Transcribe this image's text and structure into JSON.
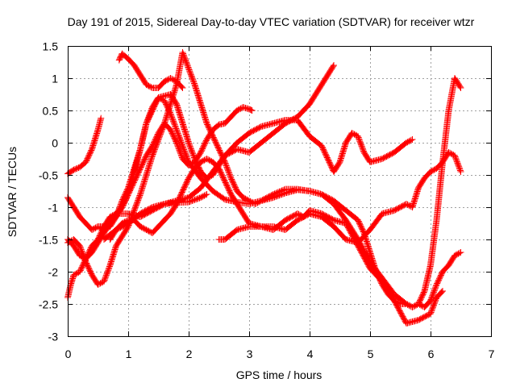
{
  "chart_data": {
    "type": "scatter",
    "title": "Day 191 of 2015, Sidereal Day-to-day VTEC variation (SDTVAR) for receiver wtzr",
    "xlabel": "GPS time / hours",
    "ylabel": "SDTVAR / TECUs",
    "xlim": [
      0,
      7
    ],
    "ylim": [
      -3,
      1.5
    ],
    "xticks": [
      "0",
      "1",
      "2",
      "3",
      "4",
      "5",
      "6",
      "7"
    ],
    "yticks": [
      "-3",
      "-2.5",
      "-2",
      "-1.5",
      "-1",
      "-0.5",
      "0",
      "0.5",
      "1",
      "1.5"
    ],
    "grid": true,
    "marker": "+",
    "color": "#ff0000",
    "series": [
      {
        "x": [
          0.0,
          0.1,
          0.2,
          0.3,
          0.4,
          0.5,
          0.55
        ],
        "y": [
          -0.48,
          -0.42,
          -0.38,
          -0.3,
          -0.1,
          0.2,
          0.38
        ]
      },
      {
        "x": [
          0.85,
          0.9,
          1.0,
          1.1,
          1.2,
          1.3,
          1.4,
          1.5,
          1.6,
          1.7,
          1.8,
          1.9
        ],
        "y": [
          1.28,
          1.38,
          1.3,
          1.2,
          1.05,
          0.9,
          0.85,
          0.85,
          0.95,
          1.0,
          0.95,
          0.85
        ]
      },
      {
        "x": [
          0.0,
          0.1,
          0.2,
          0.3,
          0.4,
          0.5,
          0.6,
          0.7,
          0.8,
          0.9,
          1.0,
          1.1,
          1.2,
          1.3,
          1.5,
          1.7,
          1.8,
          1.9,
          2.0,
          2.1,
          2.2,
          2.3,
          2.4,
          2.5,
          2.6,
          2.8,
          3.0,
          3.2,
          3.4,
          3.6,
          3.8,
          4.0,
          4.2,
          4.4
        ],
        "y": [
          -0.85,
          -1.0,
          -1.15,
          -1.25,
          -1.35,
          -1.3,
          -1.35,
          -1.3,
          -1.15,
          -0.9,
          -0.7,
          -0.4,
          -0.1,
          0.3,
          0.7,
          0.75,
          0.6,
          0.3,
          0.0,
          -0.25,
          -0.45,
          -0.55,
          -0.5,
          -0.35,
          -0.2,
          -0.1,
          -0.15,
          0.0,
          0.15,
          0.3,
          0.4,
          0.6,
          0.9,
          1.2
        ]
      },
      {
        "x": [
          0.0,
          0.1,
          0.2,
          0.3,
          0.4,
          0.5,
          0.6,
          0.7,
          0.8,
          1.0,
          1.2,
          1.4,
          1.6,
          1.8,
          1.9,
          2.0,
          2.1,
          2.2,
          2.3,
          2.4,
          2.5,
          2.6,
          2.7,
          2.8,
          2.9,
          3.0,
          3.1,
          3.2,
          3.4,
          3.6,
          3.8,
          4.0,
          4.2,
          4.4,
          4.6,
          4.8,
          4.9,
          5.0,
          5.1,
          5.2,
          5.3,
          5.4,
          5.5,
          5.6,
          5.7,
          5.8,
          5.9,
          6.0,
          6.1,
          6.2,
          6.3,
          6.4,
          6.5
        ],
        "y": [
          -1.55,
          -1.5,
          -1.6,
          -1.85,
          -2.05,
          -2.2,
          -2.15,
          -1.9,
          -1.6,
          -1.3,
          -0.8,
          -0.2,
          0.3,
          0.9,
          1.4,
          1.15,
          0.9,
          0.6,
          0.3,
          0.1,
          -0.1,
          -0.3,
          -0.55,
          -0.75,
          -0.85,
          -0.9,
          -0.95,
          -0.9,
          -0.8,
          -0.72,
          -0.72,
          -0.75,
          -0.8,
          -0.9,
          -1.05,
          -1.2,
          -1.4,
          -1.7,
          -2.0,
          -2.2,
          -2.35,
          -2.45,
          -2.5,
          -2.5,
          -2.55,
          -2.5,
          -2.55,
          -2.45,
          -2.2,
          -2.0,
          -1.9,
          -1.75,
          -1.7
        ]
      },
      {
        "x": [
          0.0,
          0.05,
          0.1,
          0.2,
          0.3,
          0.4,
          0.5,
          0.6,
          0.7,
          0.8,
          0.9,
          1.0,
          1.1,
          1.2,
          1.3,
          1.4,
          1.5,
          1.6,
          1.7,
          1.8,
          1.9,
          2.0,
          2.2,
          2.4,
          2.6,
          2.8,
          3.0,
          3.2,
          3.4,
          3.6,
          3.8,
          4.0,
          4.2,
          4.4,
          4.6,
          4.8,
          5.0,
          5.2,
          5.4,
          5.6,
          5.7,
          5.8,
          5.9,
          6.0,
          6.1,
          6.2,
          6.3,
          6.4,
          6.5
        ],
        "y": [
          -2.4,
          -2.2,
          -2.05,
          -2.0,
          -1.8,
          -1.6,
          -1.5,
          -1.3,
          -1.15,
          -1.1,
          -1.0,
          -0.8,
          -0.45,
          -0.1,
          0.3,
          0.55,
          0.7,
          0.65,
          0.45,
          0.2,
          -0.05,
          -0.3,
          -0.55,
          -0.75,
          -0.88,
          -0.92,
          -0.95,
          -0.9,
          -0.85,
          -0.78,
          -0.73,
          -0.75,
          -0.8,
          -0.95,
          -1.2,
          -1.5,
          -1.85,
          -2.1,
          -2.35,
          -2.5,
          -2.55,
          -2.5,
          -2.3,
          -1.9,
          -1.2,
          -0.3,
          0.5,
          1.0,
          0.85
        ]
      },
      {
        "x": [
          0.0,
          0.1,
          0.2,
          0.3,
          0.4,
          0.5,
          0.6,
          0.7,
          0.8,
          0.9,
          1.0,
          1.1,
          1.2,
          1.3,
          1.4,
          1.5,
          1.6,
          1.7,
          1.8,
          1.9,
          2.0,
          2.1,
          2.2,
          2.3,
          2.4,
          2.5,
          2.6,
          2.7,
          2.8,
          2.9,
          3.0,
          3.05
        ],
        "y": [
          -1.5,
          -1.6,
          -1.75,
          -1.8,
          -1.7,
          -1.55,
          -1.4,
          -1.25,
          -1.15,
          -1.0,
          -0.8,
          -0.6,
          -0.4,
          -0.2,
          -0.05,
          0.15,
          0.3,
          0.2,
          0.0,
          -0.25,
          -0.35,
          -0.3,
          -0.15,
          0.05,
          0.2,
          0.28,
          0.3,
          0.4,
          0.5,
          0.55,
          0.52,
          0.5
        ]
      },
      {
        "x": [
          0.4,
          0.5,
          0.6,
          0.8,
          1.0,
          1.2,
          1.4,
          1.6,
          1.8,
          2.0,
          2.2,
          2.4,
          2.6,
          2.8,
          3.0,
          3.2,
          3.4,
          3.6,
          3.8,
          4.0,
          4.2,
          4.4,
          4.5,
          4.6,
          4.7,
          4.8,
          4.9,
          5.0,
          5.2,
          5.4,
          5.6,
          5.7
        ],
        "y": [
          -1.35,
          -1.3,
          -1.3,
          -1.1,
          -1.1,
          -1.15,
          -1.05,
          -0.95,
          -0.9,
          -0.85,
          -0.7,
          -0.45,
          -0.2,
          0.0,
          0.15,
          0.25,
          0.3,
          0.35,
          0.35,
          0.1,
          -0.05,
          -0.45,
          -0.3,
          0.0,
          0.15,
          0.1,
          -0.15,
          -0.3,
          -0.25,
          -0.15,
          0.0,
          0.05
        ]
      },
      {
        "x": [
          0.6,
          0.8,
          1.0,
          1.2,
          1.4,
          1.6,
          1.8,
          2.0,
          2.2,
          2.3
        ],
        "y": [
          -1.5,
          -1.35,
          -1.25,
          -1.1,
          -1.0,
          -0.95,
          -0.93,
          -0.92,
          -0.85,
          -0.8
        ]
      },
      {
        "x": [
          0.7,
          0.8,
          0.9,
          1.0,
          1.1,
          1.2,
          1.3,
          1.4,
          1.5,
          1.6,
          1.7,
          1.8,
          1.9,
          2.0,
          2.1,
          2.2,
          2.3,
          2.4,
          2.5,
          2.6,
          2.7,
          2.8,
          3.0,
          3.2,
          3.4,
          3.6,
          3.8,
          4.0,
          4.2,
          4.4,
          4.6,
          4.8,
          5.0,
          5.2,
          5.4,
          5.6,
          5.7,
          5.8,
          5.9,
          6.0,
          6.1,
          6.2,
          6.3,
          6.4,
          6.5
        ],
        "y": [
          -1.5,
          -1.35,
          -1.25,
          -1.2,
          -1.2,
          -1.3,
          -1.35,
          -1.4,
          -1.3,
          -1.2,
          -1.1,
          -0.95,
          -0.75,
          -0.55,
          -0.4,
          -0.3,
          -0.25,
          -0.3,
          -0.4,
          -0.6,
          -0.8,
          -0.95,
          -1.25,
          -1.3,
          -1.3,
          -1.35,
          -1.2,
          -1.1,
          -1.15,
          -1.3,
          -1.5,
          -1.55,
          -1.35,
          -1.1,
          -1.05,
          -0.95,
          -1.0,
          -0.7,
          -0.55,
          -0.45,
          -0.4,
          -0.3,
          -0.15,
          -0.2,
          -0.45
        ]
      },
      {
        "x": [
          2.5,
          2.6,
          2.8,
          3.0,
          3.2,
          3.4,
          3.6,
          3.8,
          3.9,
          4.0,
          4.2,
          4.4,
          4.6,
          4.8,
          5.0,
          5.2,
          5.4,
          5.6,
          5.8,
          6.0,
          6.1,
          6.2
        ],
        "y": [
          -1.5,
          -1.5,
          -1.35,
          -1.3,
          -1.3,
          -1.35,
          -1.2,
          -1.1,
          -1.15,
          -1.05,
          -1.1,
          -1.2,
          -1.25,
          -1.6,
          -1.95,
          -2.15,
          -2.45,
          -2.8,
          -2.75,
          -2.65,
          -2.4,
          -2.3
        ]
      }
    ]
  }
}
